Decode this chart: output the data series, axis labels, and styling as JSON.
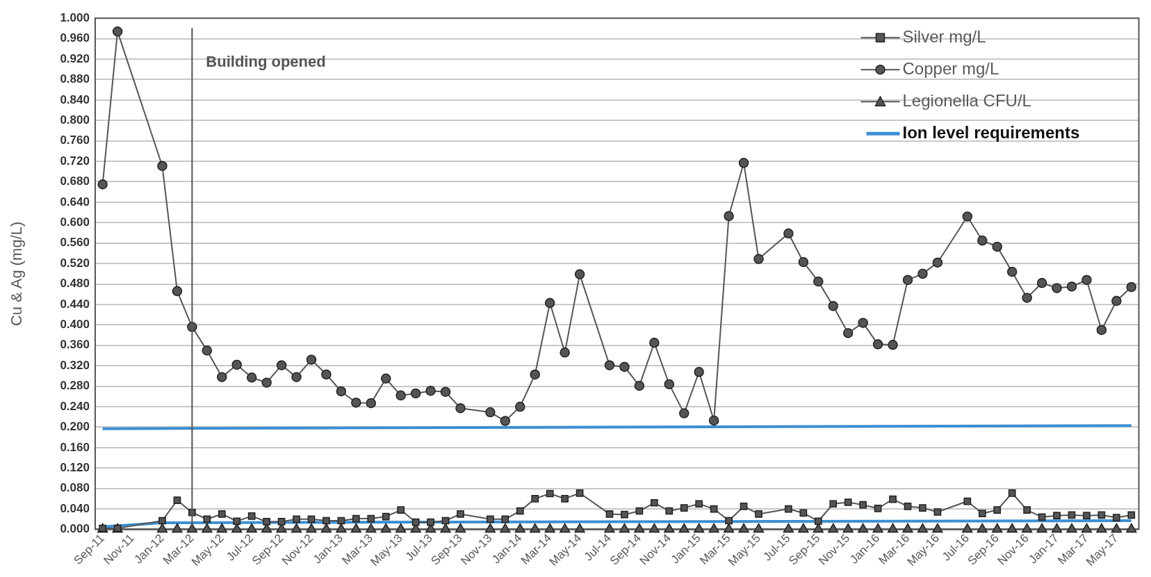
{
  "chart_data": {
    "type": "line",
    "ylabel": "Cu & Ag (mg/L)",
    "categories": [
      "Sep-11",
      null,
      "Nov-11",
      null,
      "Jan-12",
      null,
      "Mar-12",
      null,
      "May-12",
      null,
      "Jul-12",
      null,
      "Sep-12",
      null,
      "Nov-12",
      null,
      "Jan-13",
      null,
      "Mar-13",
      null,
      "May-13",
      null,
      "Jul-13",
      null,
      "Sep-13",
      null,
      "Nov-13",
      null,
      "Jan-14",
      null,
      "Mar-14",
      null,
      "May-14",
      null,
      "Jul-14",
      null,
      "Sep-14",
      null,
      "Nov-14",
      null,
      "Jan-15",
      null,
      "Mar-15",
      null,
      "May-15",
      null,
      "Jul-15",
      null,
      "Sep-15",
      null,
      "Nov-15",
      null,
      "Jan-16",
      null,
      "Mar-16",
      null,
      "May-16",
      null,
      "Jul-16",
      null,
      "Sep-16",
      null,
      "Nov-16",
      null,
      "Jan-17",
      null,
      "Mar-17",
      null,
      "May-17",
      null
    ],
    "series": [
      {
        "name": "Silver mg/L",
        "color": "#555555",
        "marker": "square",
        "values": [
          0.002,
          0.002,
          null,
          null,
          0.017,
          0.057,
          0.033,
          0.02,
          0.03,
          0.016,
          0.026,
          0.015,
          0.015,
          0.02,
          0.02,
          0.017,
          0.017,
          0.021,
          0.021,
          0.025,
          0.038,
          0.014,
          0.014,
          0.017,
          0.03,
          null,
          0.02,
          0.02,
          0.036,
          0.06,
          0.07,
          0.06,
          0.071,
          null,
          0.03,
          0.029,
          0.036,
          0.052,
          0.036,
          0.042,
          0.05,
          0.04,
          0.017,
          0.045,
          0.03,
          null,
          0.04,
          0.032,
          0.016,
          0.05,
          0.053,
          0.048,
          0.041,
          0.059,
          0.045,
          0.042,
          0.034,
          null,
          0.055,
          0.031,
          0.038,
          0.071,
          0.038,
          0.024,
          0.027,
          0.028,
          0.027,
          0.028,
          0.023,
          0.028
        ]
      },
      {
        "name": "Copper mg/L",
        "color": "#555555",
        "marker": "circle",
        "values": [
          0.675,
          0.974,
          null,
          null,
          0.711,
          0.466,
          0.396,
          0.35,
          0.298,
          0.322,
          0.297,
          0.287,
          0.321,
          0.298,
          0.332,
          0.303,
          0.27,
          0.248,
          0.247,
          0.295,
          0.262,
          0.266,
          0.271,
          0.269,
          0.237,
          null,
          0.229,
          0.212,
          0.24,
          0.303,
          0.443,
          0.346,
          0.499,
          null,
          0.321,
          0.318,
          0.281,
          0.365,
          0.284,
          0.227,
          0.308,
          0.213,
          0.613,
          0.717,
          0.529,
          null,
          0.579,
          0.523,
          0.485,
          0.437,
          0.384,
          0.404,
          0.362,
          0.361,
          0.488,
          0.5,
          0.522,
          null,
          0.612,
          0.565,
          0.553,
          0.504,
          0.453,
          0.482,
          0.472,
          0.475,
          0.488,
          0.39,
          0.447,
          0.474
        ]
      },
      {
        "name": "Legionella CFU/L",
        "color": "#555555",
        "marker": "triangle",
        "values": [
          0,
          0,
          null,
          null,
          0,
          0,
          0,
          0,
          0,
          0,
          0,
          0,
          0,
          0,
          0,
          0,
          0,
          0,
          0,
          0,
          0,
          0,
          0,
          0,
          0,
          null,
          0,
          0,
          0,
          0,
          0,
          0,
          0,
          null,
          0,
          0,
          0,
          0,
          0,
          0,
          0,
          0,
          0,
          0,
          0,
          null,
          0,
          0,
          0,
          0,
          0,
          0,
          0,
          0,
          0,
          0,
          0,
          null,
          0,
          0,
          0,
          0,
          0,
          0,
          0,
          0,
          0,
          0,
          0,
          0
        ]
      },
      {
        "name": "Ion level requirements",
        "color": "#3d8fd1",
        "marker": "none",
        "values": [
          0.197,
          null,
          null,
          null,
          null,
          null,
          null,
          null,
          null,
          null,
          null,
          null,
          null,
          null,
          null,
          null,
          null,
          null,
          null,
          null,
          null,
          null,
          null,
          null,
          null,
          null,
          null,
          null,
          null,
          null,
          null,
          null,
          null,
          null,
          null,
          null,
          null,
          null,
          null,
          null,
          null,
          null,
          null,
          null,
          null,
          null,
          null,
          null,
          null,
          null,
          null,
          null,
          null,
          null,
          null,
          null,
          null,
          null,
          null,
          null,
          null,
          null,
          null,
          null,
          null,
          null,
          null,
          null,
          null,
          0.203
        ]
      },
      {
        "color": "#3d8fd1",
        "marker": "none",
        "values": [
          0.005,
          null,
          null,
          null,
          0.013,
          null,
          null,
          null,
          null,
          null,
          null,
          null,
          null,
          null,
          null,
          null,
          null,
          null,
          null,
          null,
          null,
          null,
          null,
          null,
          null,
          null,
          null,
          null,
          null,
          null,
          null,
          null,
          null,
          null,
          null,
          null,
          null,
          null,
          null,
          null,
          null,
          null,
          null,
          null,
          null,
          null,
          null,
          null,
          null,
          null,
          null,
          null,
          null,
          null,
          null,
          null,
          null,
          null,
          null,
          null,
          null,
          null,
          null,
          null,
          null,
          null,
          null,
          null,
          null,
          0.017
        ]
      }
    ],
    "ylim": [
      0,
      1
    ],
    "yticks": [
      {
        "value": 0,
        "label": "0.000"
      },
      {
        "value": 0.04,
        "label": "0.040"
      },
      {
        "value": 0.08,
        "label": "0.080"
      },
      {
        "value": 0.12,
        "label": "0.120"
      },
      {
        "value": 0.16,
        "label": "0.160"
      },
      {
        "value": 0.2,
        "label": "0.200"
      },
      {
        "value": 0.24,
        "label": "0.240"
      },
      {
        "value": 0.28,
        "label": "0.280"
      },
      {
        "value": 0.32,
        "label": "0.320"
      },
      {
        "value": 0.36,
        "label": "0.360"
      },
      {
        "value": 0.4,
        "label": "0.400"
      },
      {
        "value": 0.44,
        "label": "0.440"
      },
      {
        "value": 0.48,
        "label": "0.480"
      },
      {
        "value": 0.52,
        "label": "0.520"
      },
      {
        "value": 0.56,
        "label": "0.560"
      },
      {
        "value": 0.6,
        "label": "0.600"
      },
      {
        "value": 0.64,
        "label": "0.640"
      },
      {
        "value": 0.68,
        "label": "0.680"
      },
      {
        "value": 0.72,
        "label": "0.720"
      },
      {
        "value": 0.76,
        "label": "0.760"
      },
      {
        "value": 0.8,
        "label": "0.800"
      },
      {
        "value": 0.84,
        "label": "0.840"
      },
      {
        "value": 0.88,
        "label": "0.880"
      },
      {
        "value": 0.92,
        "label": "0.920"
      },
      {
        "value": 0.96,
        "label": "0.960"
      },
      {
        "value": 1,
        "label": "1.000"
      }
    ],
    "ref_lines": [
      {
        "axis": "x",
        "value": "Mar-12",
        "label": "Building opened",
        "color": "#555555"
      }
    ],
    "grid": "y",
    "legend": "top right",
    "line_style": "solid"
  }
}
